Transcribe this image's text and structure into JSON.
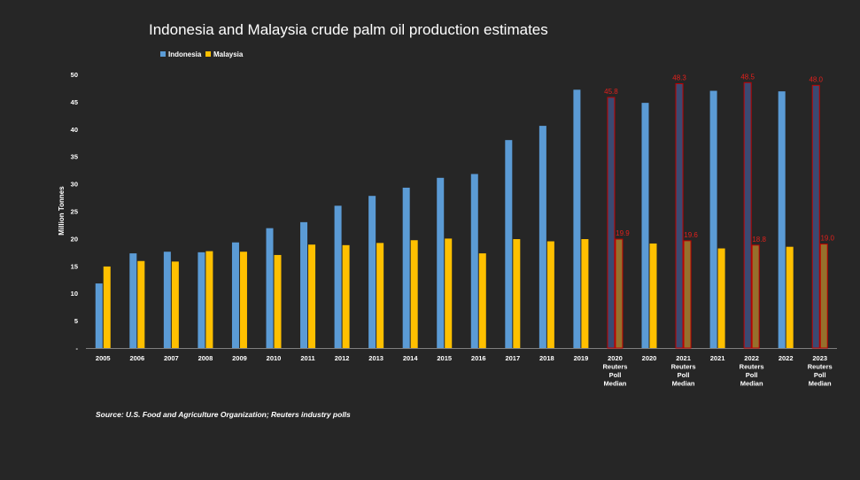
{
  "chart_data": {
    "type": "bar",
    "title": "Indonesia and Malaysia crude palm oil production estimates",
    "ylabel": "Million Tonnes",
    "xlabel": "",
    "ylim": [
      0,
      50
    ],
    "yticks": [
      "-",
      "5",
      "10",
      "15",
      "20",
      "25",
      "30",
      "35",
      "40",
      "45",
      "50"
    ],
    "legend_position": "top-left",
    "categories": [
      "2005",
      "2006",
      "2007",
      "2008",
      "2009",
      "2010",
      "2011",
      "2012",
      "2013",
      "2014",
      "2015",
      "2016",
      "2017",
      "2018",
      "2019",
      "2020\nReuters\nPoll\nMedian",
      "2020",
      "2021\nReuters\nPoll\nMedian",
      "2021",
      "2022\nReuters\nPoll\nMedian",
      "2022",
      "2023\nReuters\nPoll\nMedian"
    ],
    "series": [
      {
        "name": "Indonesia",
        "color": "#5b9bd5",
        "values": [
          11.8,
          17.3,
          17.6,
          17.5,
          19.3,
          21.9,
          23.0,
          26.0,
          27.8,
          29.3,
          31.1,
          31.8,
          38.0,
          40.6,
          47.2,
          45.8,
          44.8,
          48.3,
          47.0,
          48.5,
          46.9,
          48.0
        ]
      },
      {
        "name": "Malaysia",
        "color": "#ffc000",
        "values": [
          14.9,
          15.9,
          15.8,
          17.7,
          17.6,
          17.0,
          18.9,
          18.8,
          19.2,
          19.7,
          20.0,
          17.3,
          19.9,
          19.5,
          19.9,
          19.9,
          19.1,
          19.6,
          18.2,
          18.8,
          18.5,
          19.0
        ]
      }
    ],
    "poll_indices": [
      15,
      17,
      19,
      21
    ],
    "poll_colors": {
      "indonesia_fill": "#3b4a72",
      "malaysia_fill": "#96702c",
      "outline": "#c00000"
    },
    "data_labels": {
      "Indonesia": {
        "15": "45.8",
        "17": "48.3",
        "19": "48.5",
        "21": "48.0"
      },
      "Malaysia": {
        "15": "19.9",
        "17": "19.6",
        "19": "18.8",
        "21": "19.0"
      }
    },
    "annotations": [
      "Source: U.S. Food and Agriculture Organization; Reuters industry polls"
    ]
  }
}
